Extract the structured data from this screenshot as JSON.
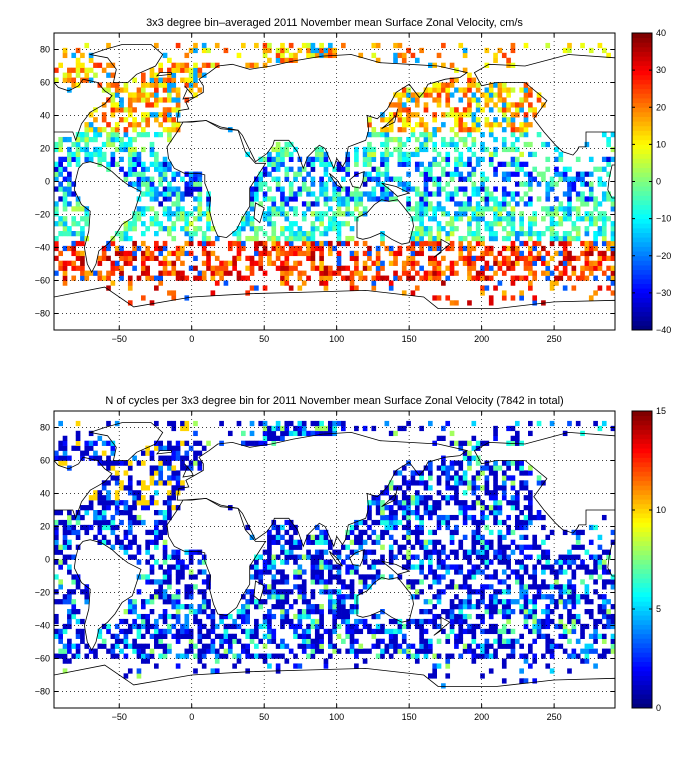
{
  "chart_data": [
    {
      "type": "heatmap",
      "title": "3x3 degree bin–averaged 2011 November mean Surface Zonal Velocity, cm/s",
      "xlabel": "",
      "ylabel": "",
      "xlim": [
        -95,
        292
      ],
      "ylim": [
        -90,
        90
      ],
      "xticks": [
        -50,
        0,
        50,
        100,
        150,
        200,
        250
      ],
      "yticks": [
        -80,
        -60,
        -40,
        -20,
        0,
        20,
        40,
        60,
        80
      ],
      "grid": true,
      "bin_size_deg": 3,
      "colorbar": {
        "min": -40,
        "max": 40,
        "ticks": [
          40,
          30,
          20,
          10,
          0,
          -10,
          -20,
          -30,
          -40
        ]
      },
      "colormap": "jet"
    },
    {
      "type": "heatmap",
      "title": "N of cycles per 3x3 degree bin for 2011 November mean Surface Zonal Velocity (7842 in total)",
      "xlabel": "",
      "ylabel": "",
      "xlim": [
        -95,
        292
      ],
      "ylim": [
        -90,
        90
      ],
      "xticks": [
        -50,
        0,
        50,
        100,
        150,
        200,
        250
      ],
      "yticks": [
        -80,
        -60,
        -40,
        -20,
        0,
        20,
        40,
        60,
        80
      ],
      "grid": true,
      "bin_size_deg": 3,
      "total_cycles": 7842,
      "colorbar": {
        "min": 0,
        "max": 15,
        "ticks": [
          15,
          10,
          5,
          0
        ]
      },
      "colormap": "jet"
    }
  ]
}
